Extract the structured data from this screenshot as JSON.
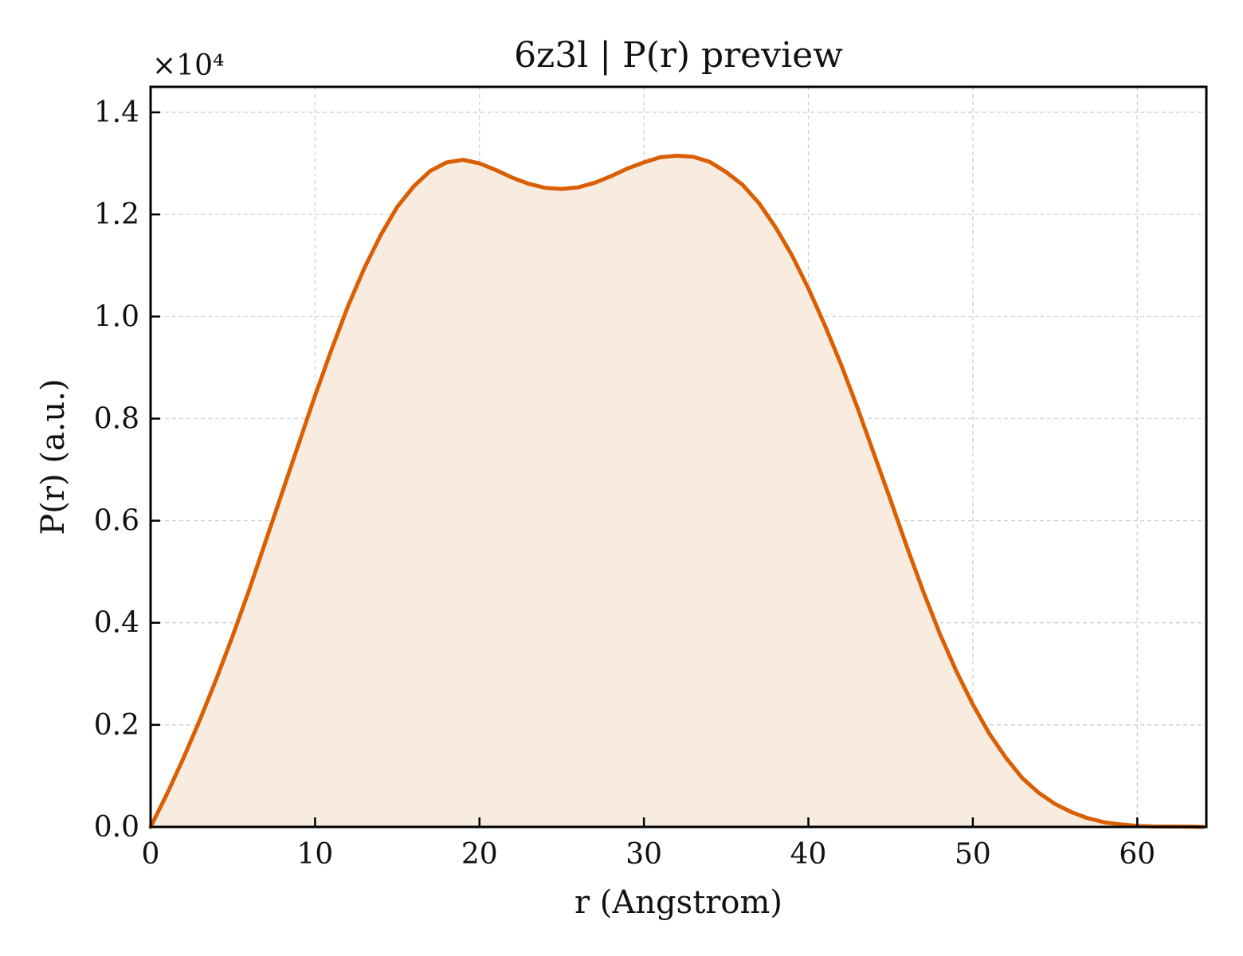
{
  "chart_data": {
    "type": "area",
    "title": "6z3l | P(r) preview",
    "xlabel": "r (Angstrom)",
    "ylabel": "P(r) (a.u.)",
    "y_offset_label": "×10⁴",
    "xlim": [
      0,
      64.2
    ],
    "ylim": [
      0,
      1.45
    ],
    "xticks": [
      0,
      10,
      20,
      30,
      40,
      50,
      60
    ],
    "yticks": [
      0.0,
      0.2,
      0.4,
      0.6,
      0.8,
      1.0,
      1.2,
      1.4
    ],
    "ytick_labels": [
      "0.0",
      "0.2",
      "0.4",
      "0.6",
      "0.8",
      "1.0",
      "1.2",
      "1.4"
    ],
    "grid": true,
    "line_color": "#d95f02",
    "fill_color": "#f8ebe0",
    "series": [
      {
        "x": [
          0,
          1,
          2,
          3,
          4,
          5,
          6,
          7,
          8,
          9,
          10,
          11,
          12,
          13,
          14,
          15,
          16,
          17,
          18,
          19,
          20,
          21,
          22,
          23,
          24,
          25,
          26,
          27,
          28,
          29,
          30,
          31,
          32,
          33,
          34,
          35,
          36,
          37,
          38,
          39,
          40,
          41,
          42,
          43,
          44,
          45,
          46,
          47,
          48,
          49,
          50,
          51,
          52,
          53,
          54,
          55,
          56,
          57,
          58,
          59,
          60,
          61,
          62,
          63,
          64
        ],
        "y": [
          0.0,
          0.065,
          0.135,
          0.21,
          0.29,
          0.375,
          0.465,
          0.56,
          0.655,
          0.75,
          0.845,
          0.935,
          1.02,
          1.095,
          1.16,
          1.215,
          1.255,
          1.285,
          1.302,
          1.307,
          1.3,
          1.287,
          1.272,
          1.26,
          1.252,
          1.25,
          1.253,
          1.262,
          1.275,
          1.29,
          1.302,
          1.312,
          1.315,
          1.313,
          1.303,
          1.283,
          1.258,
          1.222,
          1.175,
          1.12,
          1.055,
          0.983,
          0.905,
          0.82,
          0.73,
          0.64,
          0.548,
          0.46,
          0.378,
          0.305,
          0.24,
          0.183,
          0.136,
          0.096,
          0.067,
          0.045,
          0.029,
          0.017,
          0.009,
          0.005,
          0.002,
          0.001,
          0.0008,
          0.0006,
          0.0
        ]
      }
    ]
  }
}
